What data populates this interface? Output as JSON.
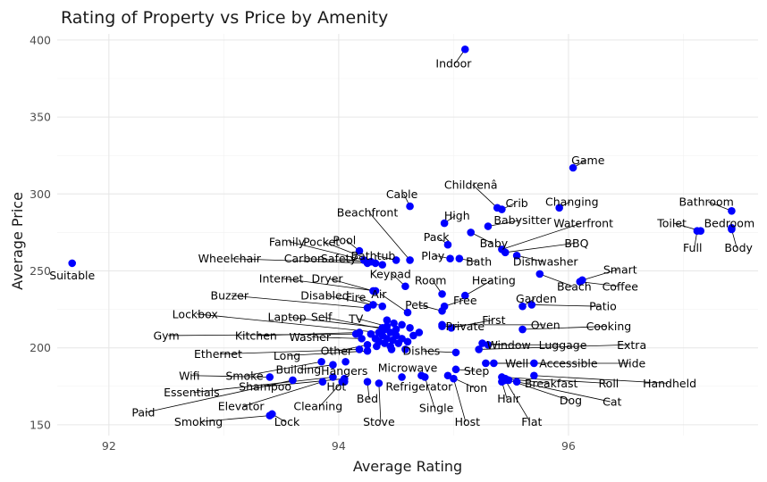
{
  "chart_data": {
    "type": "scatter",
    "title": "Rating of Property vs Price by Amenity",
    "xlabel": "Average Rating",
    "ylabel": "Average Price",
    "xlim": [
      91.55,
      97.65
    ],
    "ylim": [
      143,
      404
    ],
    "xticks": [
      92,
      94,
      96
    ],
    "yticks": [
      150,
      200,
      250,
      300,
      350,
      400
    ],
    "grid": true,
    "legend": "none",
    "point_color": "#0000ff",
    "points": [
      {
        "label": "Indoor",
        "x": 95.1,
        "y": 394,
        "lx": 95.0,
        "ly": 385
      },
      {
        "label": "Game",
        "x": 96.04,
        "y": 317,
        "lx": 96.17,
        "ly": 322
      },
      {
        "label": "Childrenâ",
        "x": 95.38,
        "y": 291,
        "lx": 95.15,
        "ly": 306
      },
      {
        "label": "Crib",
        "x": 95.42,
        "y": 290,
        "lx": 95.55,
        "ly": 294
      },
      {
        "label": "Changing",
        "x": 95.92,
        "y": 291,
        "lx": 96.03,
        "ly": 295
      },
      {
        "label": "Bathroom",
        "x": 97.42,
        "y": 289,
        "lx": 97.2,
        "ly": 295
      },
      {
        "label": "Cable",
        "x": 94.62,
        "y": 292,
        "lx": 94.55,
        "ly": 300
      },
      {
        "label": "High",
        "x": 94.92,
        "y": 281,
        "lx": 95.03,
        "ly": 286
      },
      {
        "label": "Babysitter",
        "x": 95.3,
        "y": 279,
        "lx": 95.6,
        "ly": 283
      },
      {
        "label": "Waterfront",
        "x": 95.42,
        "y": 264,
        "lx": 96.13,
        "ly": 281
      },
      {
        "label": "Bedroom",
        "x": 97.42,
        "y": 278,
        "lx": 97.4,
        "ly": 281
      },
      {
        "label": "Toilet",
        "x": 97.15,
        "y": 276,
        "lx": 96.9,
        "ly": 281
      },
      {
        "label": "Beachfront",
        "x": 94.62,
        "y": 257,
        "lx": 94.25,
        "ly": 288
      },
      {
        "label": "Pack",
        "x": 94.95,
        "y": 267,
        "lx": 94.85,
        "ly": 272
      },
      {
        "label": "Baby",
        "x": 95.15,
        "y": 275,
        "lx": 95.35,
        "ly": 268
      },
      {
        "label": "BBQ",
        "x": 95.45,
        "y": 262,
        "lx": 96.07,
        "ly": 268
      },
      {
        "label": "Full",
        "x": 97.12,
        "y": 276,
        "lx": 97.08,
        "ly": 265
      },
      {
        "label": "Body",
        "x": 97.42,
        "y": 277,
        "lx": 97.48,
        "ly": 265
      },
      {
        "label": "Family",
        "x": 94.22,
        "y": 257,
        "lx": 93.55,
        "ly": 269
      },
      {
        "label": "Pocket",
        "x": 94.38,
        "y": 254,
        "lx": 93.85,
        "ly": 269
      },
      {
        "label": "Pool",
        "x": 94.18,
        "y": 263,
        "lx": 94.05,
        "ly": 270
      },
      {
        "label": "Bathtub",
        "x": 94.5,
        "y": 257,
        "lx": 94.3,
        "ly": 260
      },
      {
        "label": "Play",
        "x": 94.97,
        "y": 258,
        "lx": 94.82,
        "ly": 260
      },
      {
        "label": "Bath",
        "x": 95.05,
        "y": 258,
        "lx": 95.22,
        "ly": 256
      },
      {
        "label": "Dishwasher",
        "x": 95.55,
        "y": 260,
        "lx": 95.8,
        "ly": 256
      },
      {
        "label": "Smart",
        "x": 96.12,
        "y": 244,
        "lx": 96.45,
        "ly": 251
      },
      {
        "label": "Wheelchair",
        "x": 94.25,
        "y": 255,
        "lx": 93.05,
        "ly": 258
      },
      {
        "label": "Carbon",
        "x": 94.28,
        "y": 256,
        "lx": 93.7,
        "ly": 258
      },
      {
        "label": "Safety",
        "x": 94.32,
        "y": 255,
        "lx": 94.0,
        "ly": 258
      },
      {
        "label": "Keypad",
        "x": 94.58,
        "y": 240,
        "lx": 94.45,
        "ly": 248
      },
      {
        "label": "Internet",
        "x": 94.32,
        "y": 237,
        "lx": 93.5,
        "ly": 245
      },
      {
        "label": "Dryer",
        "x": 94.3,
        "y": 237,
        "lx": 93.9,
        "ly": 245
      },
      {
        "label": "Room",
        "x": 94.9,
        "y": 235,
        "lx": 94.8,
        "ly": 244
      },
      {
        "label": "Heating",
        "x": 95.1,
        "y": 234,
        "lx": 95.35,
        "ly": 244
      },
      {
        "label": "Beach",
        "x": 95.75,
        "y": 248,
        "lx": 96.05,
        "ly": 240
      },
      {
        "label": "Coffee",
        "x": 96.1,
        "y": 243,
        "lx": 96.45,
        "ly": 240
      },
      {
        "label": "Buzzer",
        "x": 94.25,
        "y": 226,
        "lx": 93.05,
        "ly": 234
      },
      {
        "label": "Disabled",
        "x": 94.3,
        "y": 228,
        "lx": 93.88,
        "ly": 234
      },
      {
        "label": "Fire",
        "x": 94.38,
        "y": 227,
        "lx": 94.15,
        "ly": 233
      },
      {
        "label": "Air",
        "x": 94.6,
        "y": 223,
        "lx": 94.35,
        "ly": 235
      },
      {
        "label": "Pets",
        "x": 94.9,
        "y": 224,
        "lx": 94.68,
        "ly": 228
      },
      {
        "label": "Free",
        "x": 94.92,
        "y": 227,
        "lx": 95.1,
        "ly": 231
      },
      {
        "label": "Garden",
        "x": 95.6,
        "y": 227,
        "lx": 95.72,
        "ly": 232
      },
      {
        "label": "Patio",
        "x": 95.68,
        "y": 228,
        "lx": 96.3,
        "ly": 227
      },
      {
        "label": "Lockbox",
        "x": 94.35,
        "y": 210,
        "lx": 92.75,
        "ly": 222
      },
      {
        "label": "Laptop",
        "x": 94.38,
        "y": 213,
        "lx": 93.55,
        "ly": 220
      },
      {
        "label": "Self",
        "x": 94.4,
        "y": 212,
        "lx": 93.85,
        "ly": 220
      },
      {
        "label": "TV",
        "x": 94.42,
        "y": 214,
        "lx": 94.15,
        "ly": 219
      },
      {
        "label": "First",
        "x": 94.98,
        "y": 213,
        "lx": 95.35,
        "ly": 218
      },
      {
        "label": "Private",
        "x": 94.9,
        "y": 214,
        "lx": 95.1,
        "ly": 214
      },
      {
        "label": "Oven",
        "x": 94.9,
        "y": 215,
        "lx": 95.8,
        "ly": 215
      },
      {
        "label": "Cooking",
        "x": 95.6,
        "y": 212,
        "lx": 96.35,
        "ly": 214
      },
      {
        "label": "Gym",
        "x": 94.15,
        "y": 209,
        "lx": 92.5,
        "ly": 208
      },
      {
        "label": "Kitchen",
        "x": 94.18,
        "y": 210,
        "lx": 93.28,
        "ly": 208
      },
      {
        "label": "Washer",
        "x": 94.2,
        "y": 206,
        "lx": 93.75,
        "ly": 207
      },
      {
        "label": "Window",
        "x": 95.25,
        "y": 203,
        "lx": 95.48,
        "ly": 202
      },
      {
        "label": "Luggage",
        "x": 95.3,
        "y": 202,
        "lx": 95.95,
        "ly": 202
      },
      {
        "label": "Extra",
        "x": 95.22,
        "y": 199,
        "lx": 96.55,
        "ly": 202
      },
      {
        "label": "Ethernet",
        "x": 94.18,
        "y": 199,
        "lx": 92.95,
        "ly": 196
      },
      {
        "label": "Long",
        "x": 94.25,
        "y": 198,
        "lx": 93.55,
        "ly": 195
      },
      {
        "label": "Other",
        "x": 94.25,
        "y": 202,
        "lx": 93.98,
        "ly": 198
      },
      {
        "label": "Dishes",
        "x": 95.02,
        "y": 197,
        "lx": 94.72,
        "ly": 198
      },
      {
        "label": "Well",
        "x": 95.28,
        "y": 190,
        "lx": 95.55,
        "ly": 190
      },
      {
        "label": "Accessible",
        "x": 95.35,
        "y": 190,
        "lx": 96.0,
        "ly": 190
      },
      {
        "label": "Wide",
        "x": 95.7,
        "y": 190,
        "lx": 96.55,
        "ly": 190
      },
      {
        "label": "Wifi",
        "x": 93.4,
        "y": 181,
        "lx": 92.7,
        "ly": 182
      },
      {
        "label": "Smoke",
        "x": 93.85,
        "y": 191,
        "lx": 93.18,
        "ly": 182
      },
      {
        "label": "Building",
        "x": 93.95,
        "y": 189,
        "lx": 93.65,
        "ly": 186
      },
      {
        "label": "Hangers",
        "x": 94.06,
        "y": 191,
        "lx": 94.05,
        "ly": 185
      },
      {
        "label": "Microwave",
        "x": 94.55,
        "y": 181,
        "lx": 94.6,
        "ly": 187
      },
      {
        "label": "Step",
        "x": 95.02,
        "y": 186,
        "lx": 95.2,
        "ly": 185
      },
      {
        "label": "Breakfast",
        "x": 95.45,
        "y": 180,
        "lx": 95.85,
        "ly": 177
      },
      {
        "label": "Roll",
        "x": 95.42,
        "y": 181,
        "lx": 96.35,
        "ly": 177
      },
      {
        "label": "Handheld",
        "x": 95.7,
        "y": 182,
        "lx": 96.88,
        "ly": 177
      },
      {
        "label": "Essentials",
        "x": 93.95,
        "y": 181,
        "lx": 92.72,
        "ly": 171
      },
      {
        "label": "Shampoo",
        "x": 94.05,
        "y": 180,
        "lx": 93.36,
        "ly": 175
      },
      {
        "label": "Hot",
        "x": 94.05,
        "y": 178,
        "lx": 93.98,
        "ly": 175
      },
      {
        "label": "Refrigerator",
        "x": 94.72,
        "y": 182,
        "lx": 94.7,
        "ly": 175
      },
      {
        "label": "Iron",
        "x": 94.95,
        "y": 182,
        "lx": 95.2,
        "ly": 174
      },
      {
        "label": "Bed",
        "x": 94.25,
        "y": 178,
        "lx": 94.25,
        "ly": 167
      },
      {
        "label": "Hair",
        "x": 95.42,
        "y": 178,
        "lx": 95.48,
        "ly": 167
      },
      {
        "label": "Dog",
        "x": 95.48,
        "y": 179,
        "lx": 96.02,
        "ly": 166
      },
      {
        "label": "Cat",
        "x": 95.55,
        "y": 178,
        "lx": 96.38,
        "ly": 165
      },
      {
        "label": "Paid",
        "x": 93.6,
        "y": 179,
        "lx": 92.3,
        "ly": 158
      },
      {
        "label": "Elevator",
        "x": 93.86,
        "y": 178,
        "lx": 93.15,
        "ly": 162
      },
      {
        "label": "Cleaning",
        "x": 94.03,
        "y": 178,
        "lx": 93.82,
        "ly": 162
      },
      {
        "label": "Single",
        "x": 94.75,
        "y": 181,
        "lx": 94.85,
        "ly": 161
      },
      {
        "label": "Smoking",
        "x": 93.4,
        "y": 156,
        "lx": 92.78,
        "ly": 152
      },
      {
        "label": "Lock",
        "x": 93.42,
        "y": 157,
        "lx": 93.55,
        "ly": 152
      },
      {
        "label": "Stove",
        "x": 94.35,
        "y": 177,
        "lx": 94.35,
        "ly": 152
      },
      {
        "label": "Host",
        "x": 95.0,
        "y": 180,
        "lx": 95.12,
        "ly": 152
      },
      {
        "label": "Flat",
        "x": 95.45,
        "y": 179,
        "lx": 95.68,
        "ly": 152
      },
      {
        "label": "Suitable",
        "x": 91.68,
        "y": 255,
        "lx": 91.68,
        "ly": 247
      }
    ],
    "cluster_points": [
      {
        "x": 94.32,
        "y": 206
      },
      {
        "x": 94.35,
        "y": 204
      },
      {
        "x": 94.38,
        "y": 208
      },
      {
        "x": 94.4,
        "y": 203
      },
      {
        "x": 94.42,
        "y": 206
      },
      {
        "x": 94.45,
        "y": 201
      },
      {
        "x": 94.47,
        "y": 205
      },
      {
        "x": 94.5,
        "y": 208
      },
      {
        "x": 94.52,
        "y": 203
      },
      {
        "x": 94.55,
        "y": 206
      },
      {
        "x": 94.45,
        "y": 210
      },
      {
        "x": 94.38,
        "y": 212
      },
      {
        "x": 94.5,
        "y": 212
      },
      {
        "x": 94.6,
        "y": 204
      },
      {
        "x": 94.65,
        "y": 208
      },
      {
        "x": 94.42,
        "y": 218
      },
      {
        "x": 94.48,
        "y": 216
      },
      {
        "x": 94.55,
        "y": 215
      },
      {
        "x": 94.33,
        "y": 201
      },
      {
        "x": 94.58,
        "y": 199
      },
      {
        "x": 94.7,
        "y": 210
      },
      {
        "x": 94.28,
        "y": 209
      },
      {
        "x": 94.46,
        "y": 199
      },
      {
        "x": 94.62,
        "y": 213
      }
    ]
  }
}
